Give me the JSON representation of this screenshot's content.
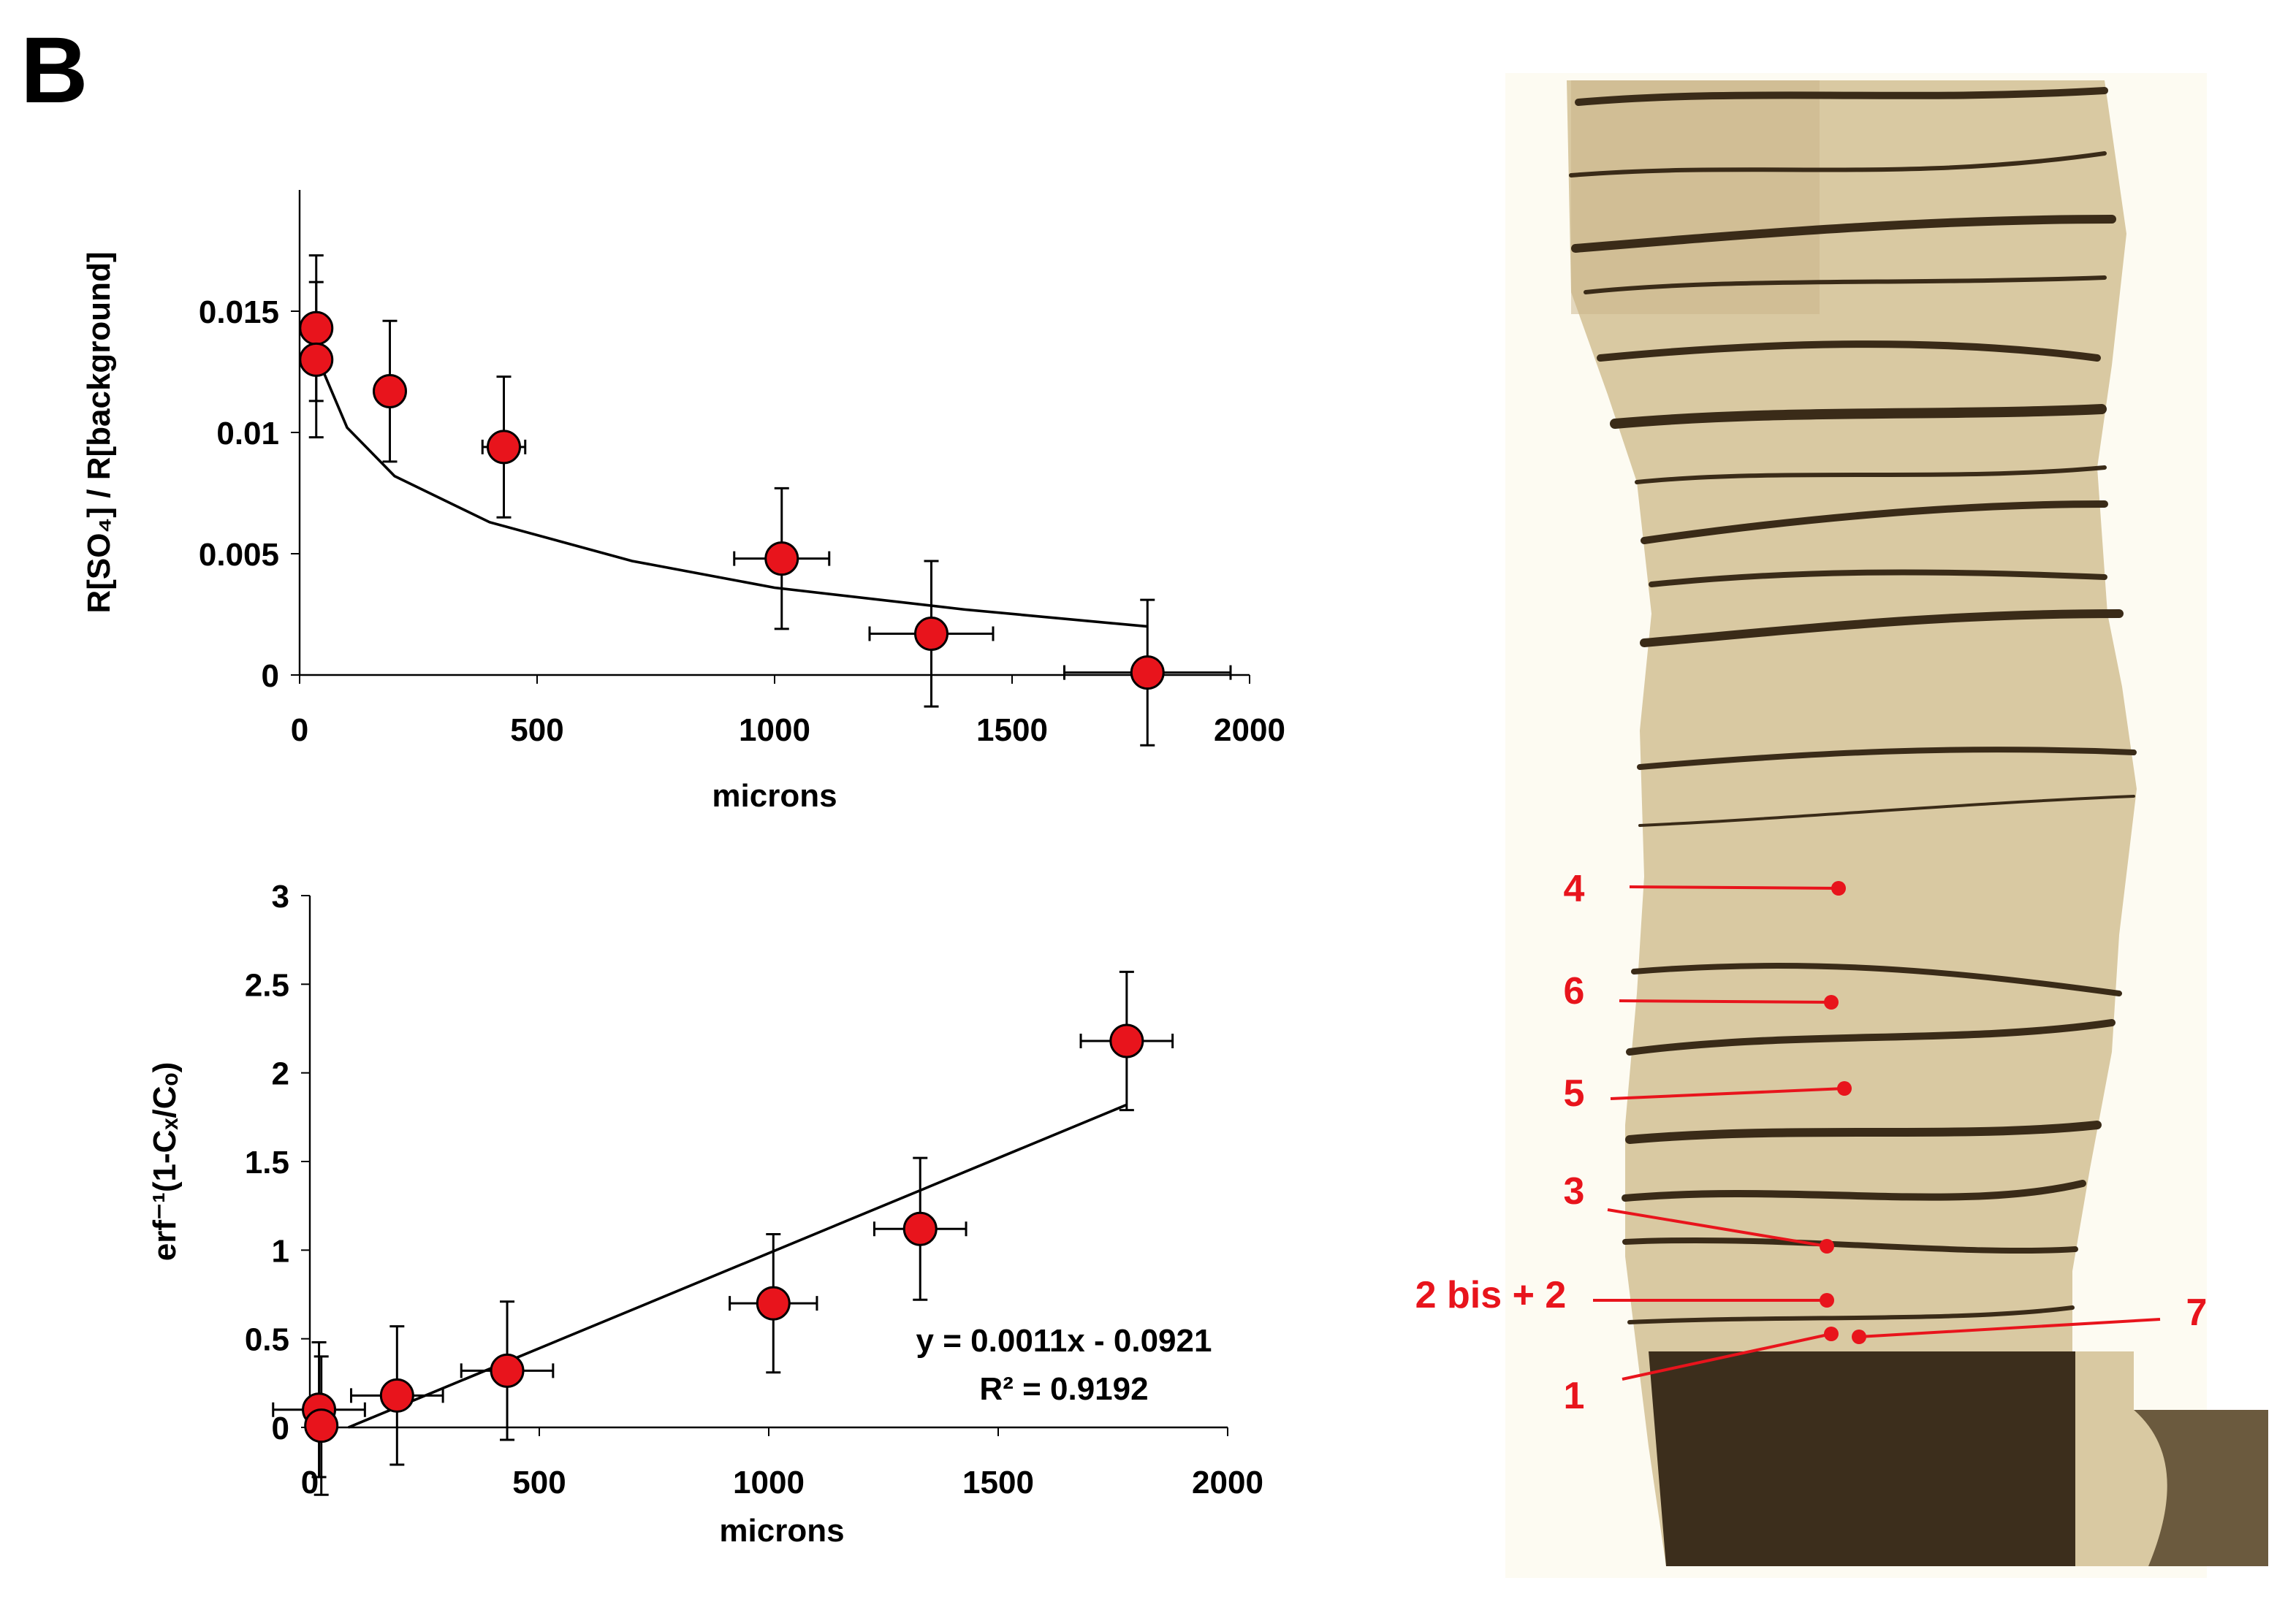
{
  "panel_label": "B",
  "chart_data": [
    {
      "type": "scatter",
      "x_label": "microns",
      "y_label": "R[SO₄] / R[background]",
      "xlim": [
        0,
        2000
      ],
      "xticks": [
        0,
        500,
        1000,
        1500,
        2000
      ],
      "ylim": [
        0,
        0.02
      ],
      "yticks": [
        0,
        0.005,
        0.01,
        0.015
      ],
      "points": {
        "color": "#e8141c",
        "x": [
          35,
          35,
          190,
          430,
          1015,
          1330,
          1785
        ],
        "values": [
          0.0143,
          0.013,
          0.0117,
          0.0094,
          0.0048,
          0.0017,
          0.0001
        ],
        "xerr": [
          0,
          0,
          0,
          45,
          100,
          130,
          175
        ],
        "yerr": [
          0.003,
          0.0032,
          0.0029,
          0.0029,
          0.0029,
          0.003,
          0.003
        ]
      },
      "fit": {
        "color": "#000000",
        "x": [
          35,
          100,
          200,
          400,
          700,
          1000,
          1400,
          1785
        ],
        "values": [
          0.0132,
          0.0102,
          0.0082,
          0.0063,
          0.0047,
          0.0036,
          0.0027,
          0.002
        ]
      }
    },
    {
      "type": "scatter",
      "x_label": "microns",
      "y_label": "erf⁻¹(1-Cₓ/Cₒ)",
      "xlim": [
        0,
        2000
      ],
      "xticks": [
        0,
        500,
        1000,
        1500,
        2000
      ],
      "ylim": [
        0,
        3
      ],
      "yticks": [
        0,
        0.5,
        1,
        1.5,
        2,
        2.5,
        3
      ],
      "annotations": [
        "y = 0.0011x - 0.0921",
        "R² = 0.9192"
      ],
      "points": {
        "color": "#e8141c",
        "x": [
          20,
          25,
          190,
          430,
          1010,
          1330,
          1780
        ],
        "values": [
          0.1,
          0.01,
          0.18,
          0.32,
          0.7,
          1.12,
          2.18
        ],
        "xerr": [
          100,
          0,
          100,
          100,
          95,
          100,
          100
        ],
        "yerr": [
          0.38,
          0.39,
          0.39,
          0.39,
          0.39,
          0.4,
          0.39
        ]
      },
      "fit": {
        "color": "#000000",
        "x": [
          84,
          1780
        ],
        "values": [
          0,
          1.82
        ]
      }
    }
  ],
  "micrograph": {
    "labels": [
      "4",
      "6",
      "5",
      "3",
      "2 bis + 2",
      "1",
      "7"
    ]
  }
}
